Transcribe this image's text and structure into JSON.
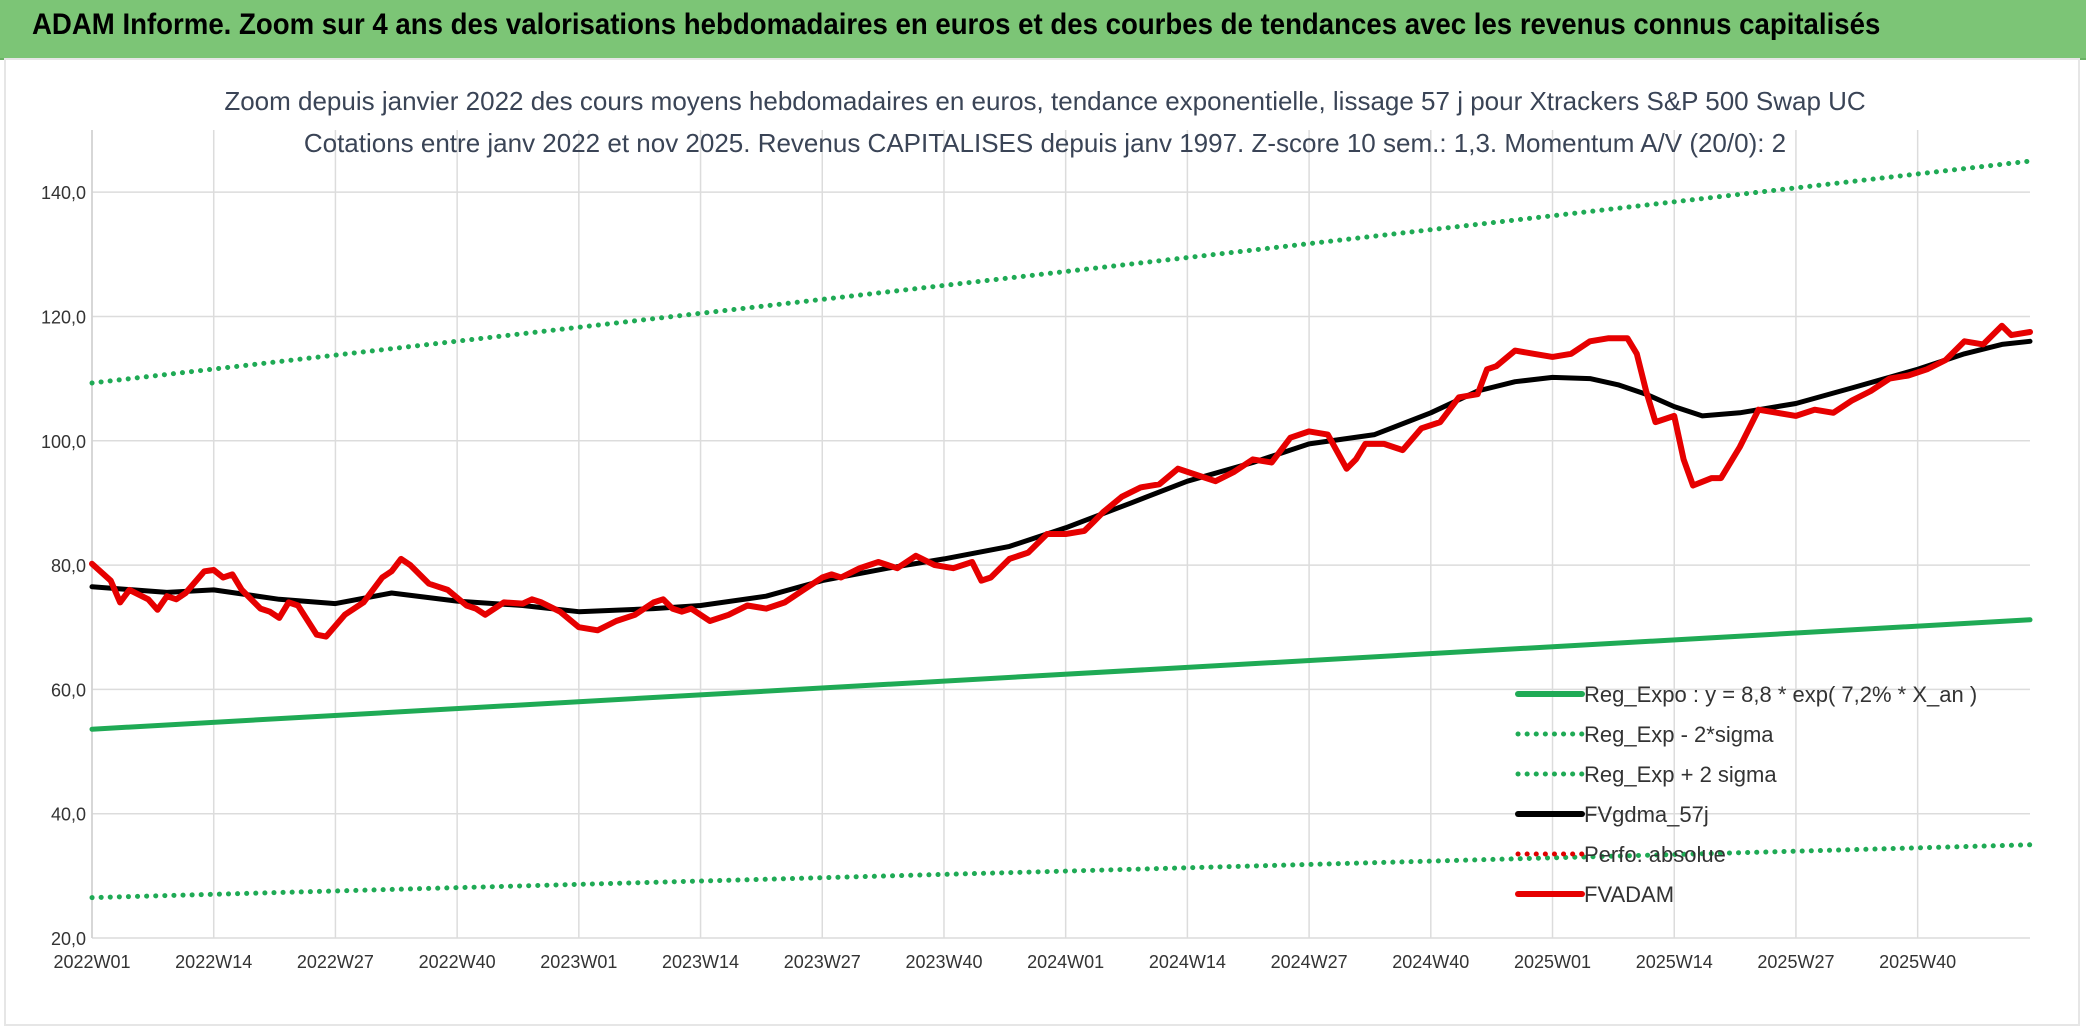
{
  "banner": {
    "title": "ADAM Informe. Zoom sur 4 ans des valorisations hebdomadaires en euros et des courbes de tendances avec les revenus connus capitalisés"
  },
  "chart_data": {
    "type": "line",
    "title": "Zoom depuis janvier 2022 des cours moyens hebdomadaires en euros, tendance exponentielle, lissage 57 j pour Xtrackers S&P 500 Swap UC",
    "subtitle": "Cotations entre janv 2022 et nov 2025. Revenus CAPITALISES depuis janv 1997. Z-score 10 sem.: 1,3. Momentum A/V (20/0): 2",
    "ylim": [
      20,
      150
    ],
    "yticks": [
      "20,0",
      "40,0",
      "60,0",
      "80,0",
      "100,0",
      "120,0",
      "140,0"
    ],
    "ytick_values": [
      20,
      40,
      60,
      80,
      100,
      120,
      140
    ],
    "xticks": [
      "2022W01",
      "2022W14",
      "2022W27",
      "2022W40",
      "2023W01",
      "2023W14",
      "2023W27",
      "2023W40",
      "2024W01",
      "2024W14",
      "2024W27",
      "2024W40",
      "2025W01",
      "2025W14",
      "2025W27",
      "2025W40"
    ],
    "xtick_weeks": [
      0,
      13,
      26,
      39,
      52,
      65,
      78,
      91,
      104,
      117,
      130,
      143,
      156,
      169,
      182,
      195
    ],
    "xlim_weeks": [
      0,
      207
    ],
    "grid": true,
    "legend_position": "bottom-right",
    "series": [
      {
        "name": "Reg_Expo : y = 8,8 * exp( 7,2% *  X_an )",
        "color": "#1faa55",
        "style": "solid",
        "weeks": [
          0,
          207
        ],
        "values": [
          53.6,
          71.2
        ]
      },
      {
        "name": "Reg_Exp - 2*sigma",
        "color": "#1faa55",
        "style": "dotted",
        "weeks": [
          0,
          207
        ],
        "values": [
          26.5,
          35.0
        ]
      },
      {
        "name": "Reg_Exp + 2 sigma",
        "color": "#1faa55",
        "style": "dotted",
        "weeks": [
          0,
          207
        ],
        "values": [
          109.3,
          145.0
        ]
      },
      {
        "name": "FVgdma_57j",
        "color": "#000000",
        "style": "solid",
        "weeks": [
          0,
          8,
          13,
          20,
          26,
          32,
          39,
          46,
          52,
          60,
          65,
          72,
          78,
          85,
          91,
          98,
          104,
          111,
          117,
          124,
          130,
          137,
          143,
          148,
          152,
          156,
          160,
          163,
          166,
          169,
          172,
          176,
          182,
          188,
          195,
          200,
          204,
          207
        ],
        "values": [
          76.5,
          75.6,
          76.0,
          74.5,
          73.8,
          75.5,
          74.2,
          73.5,
          72.5,
          73.0,
          73.5,
          75.0,
          77.5,
          79.5,
          81.0,
          83.0,
          86.0,
          90.0,
          93.5,
          96.5,
          99.5,
          101.0,
          104.5,
          108.0,
          109.5,
          110.2,
          110.0,
          109.0,
          107.5,
          105.5,
          104.0,
          104.5,
          106.0,
          108.5,
          111.5,
          114.0,
          115.5,
          116.0
        ]
      },
      {
        "name": "Perfo. absolue",
        "color": "#e00000",
        "style": "dotted",
        "weeks": [],
        "values": []
      },
      {
        "name": "FVADAM",
        "color": "#e60000",
        "style": "solid",
        "weeks": [
          0,
          2,
          3,
          4,
          6,
          7,
          8,
          9,
          10,
          12,
          13,
          14,
          15,
          16,
          18,
          19,
          20,
          21,
          22,
          24,
          25,
          27,
          29,
          30,
          31,
          32,
          33,
          34,
          36,
          37,
          38,
          40,
          41,
          42,
          44,
          46,
          47,
          48,
          50,
          52,
          54,
          56,
          58,
          60,
          61,
          62,
          63,
          64,
          66,
          68,
          70,
          72,
          74,
          76,
          78,
          79,
          80,
          82,
          84,
          86,
          88,
          90,
          92,
          94,
          95,
          96,
          98,
          100,
          102,
          104,
          106,
          107,
          108,
          110,
          112,
          114,
          116,
          118,
          120,
          122,
          124,
          126,
          128,
          130,
          132,
          134,
          135,
          136,
          138,
          140,
          142,
          144,
          146,
          148,
          149,
          150,
          152,
          154,
          156,
          158,
          160,
          162,
          164,
          165,
          166,
          167,
          168,
          169,
          170,
          171,
          173,
          174,
          176,
          178,
          180,
          182,
          184,
          186,
          188,
          190,
          192,
          194,
          196,
          198,
          200,
          202,
          204,
          205,
          207
        ],
        "values": [
          80.2,
          77.5,
          74.0,
          76.0,
          74.5,
          72.8,
          75.0,
          74.5,
          75.5,
          79.0,
          79.2,
          78.0,
          78.5,
          76.0,
          73.0,
          72.5,
          71.5,
          74.0,
          73.5,
          68.8,
          68.5,
          72.0,
          74.0,
          76.0,
          78.0,
          79.0,
          81.0,
          80.0,
          77.0,
          76.5,
          76.0,
          73.5,
          73.0,
          72.0,
          74.0,
          73.8,
          74.5,
          74.0,
          72.5,
          70.0,
          69.5,
          71.0,
          72.0,
          74.0,
          74.5,
          73.0,
          72.5,
          73.0,
          71.0,
          72.0,
          73.5,
          73.0,
          74.0,
          76.0,
          78.0,
          78.5,
          78.0,
          79.5,
          80.5,
          79.5,
          81.5,
          80.0,
          79.5,
          80.5,
          77.5,
          78.0,
          81.0,
          82.0,
          85.0,
          85.0,
          85.5,
          87.0,
          88.5,
          91.0,
          92.5,
          93.0,
          95.5,
          94.5,
          93.5,
          95.0,
          97.0,
          96.5,
          100.5,
          101.5,
          101.0,
          95.5,
          97.0,
          99.5,
          99.5,
          98.5,
          102.0,
          103.0,
          107.0,
          107.5,
          111.5,
          112.0,
          114.5,
          114.0,
          113.5,
          114.0,
          116.0,
          116.5,
          116.5,
          114.0,
          108.0,
          103.0,
          103.5,
          104.0,
          97.0,
          92.8,
          94.0,
          94.0,
          99.0,
          105.0,
          104.5,
          104.0,
          105.0,
          104.5,
          106.5,
          108.0,
          110.0,
          110.5,
          111.5,
          113.0,
          116.0,
          115.5,
          118.5,
          117.0,
          117.5
        ]
      }
    ]
  }
}
